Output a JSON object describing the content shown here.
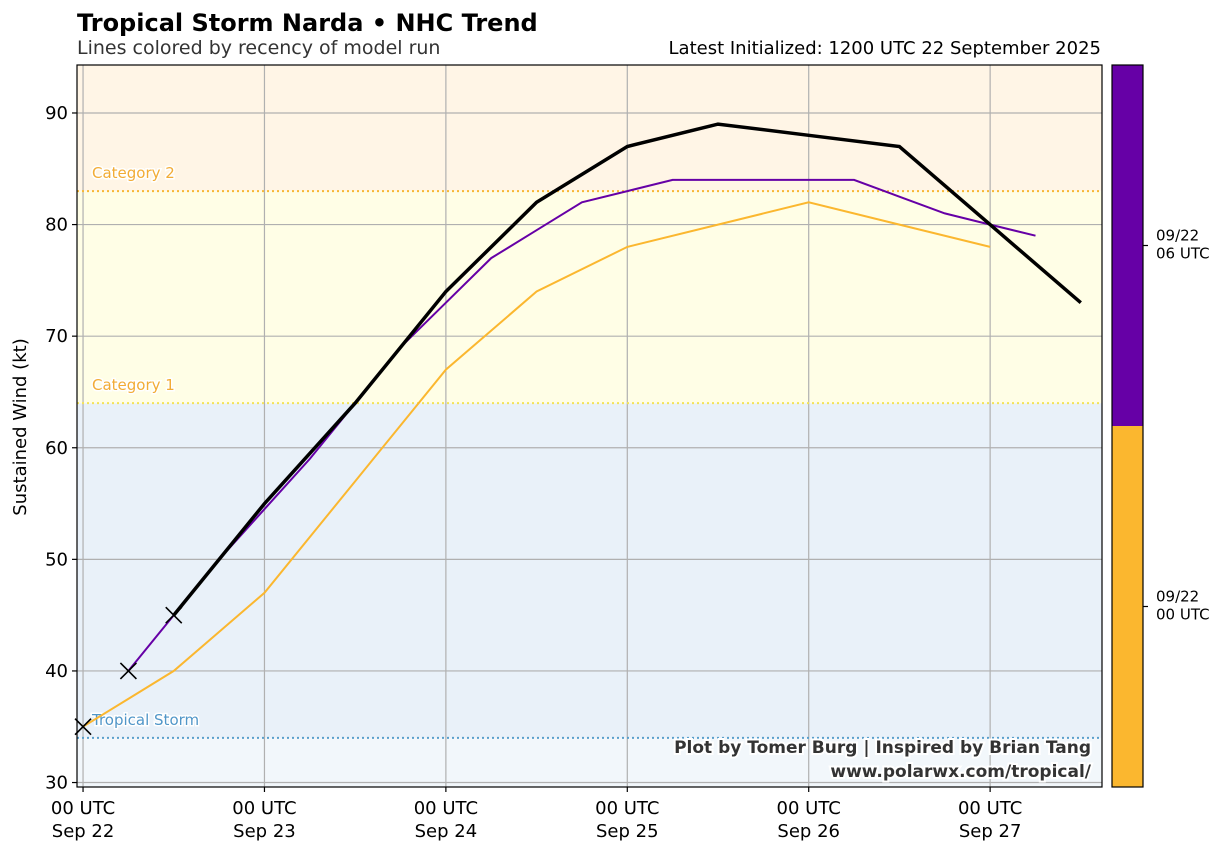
{
  "chart_data": {
    "type": "line",
    "title": "Tropical Storm Narda • NHC Trend",
    "subtitle": "Lines colored by recency of model run",
    "latest_label": "Latest Initialized: 1200 UTC 22 September 2025",
    "ylabel": "Sustained Wind (kt)",
    "ylim": [
      29.6,
      94.3
    ],
    "yticks": [
      "30",
      "40",
      "50",
      "60",
      "70",
      "80",
      "90"
    ],
    "xlim_hours": [
      -0.2,
      33.7
    ],
    "xtick_hours": [
      0,
      6,
      12,
      18,
      24,
      30
    ],
    "xtick_labels": [
      [
        "00 UTC",
        "Sep 22"
      ],
      [
        "00 UTC",
        "Sep 23"
      ],
      [
        "00 UTC",
        "Sep 24"
      ],
      [
        "00 UTC",
        "Sep 25"
      ],
      [
        "00 UTC",
        "Sep 26"
      ],
      [
        "00 UTC",
        "Sep 27"
      ]
    ],
    "grid": true,
    "thresholds": [
      {
        "label": "Tropical Storm",
        "value": 34,
        "color": "#5aa0cc"
      },
      {
        "label": "Category 1",
        "value": 64,
        "color": "#f3e25a"
      },
      {
        "label": "Category 2",
        "value": 83,
        "color": "#f7b733"
      }
    ],
    "threshold_label_colors": {
      "Tropical Storm": "#5096c8",
      "Category 1": "#f2ac36",
      "Category 2": "#f2ac36"
    },
    "bands": [
      {
        "from": 29.6,
        "to": 34,
        "color": "#f2f7fb"
      },
      {
        "from": 34,
        "to": 64,
        "color": "#e9f1f9"
      },
      {
        "from": 64,
        "to": 83,
        "color": "#fffee6"
      },
      {
        "from": 83,
        "to": 94.3,
        "color": "#fff5e6"
      }
    ],
    "series": [
      {
        "color": "#fbb72f",
        "width": 2,
        "x": [
          0,
          3,
          6,
          9,
          12,
          15,
          18,
          21,
          24,
          27,
          30
        ],
        "y": [
          35,
          40,
          47,
          57,
          67,
          74,
          78,
          80,
          82,
          80,
          78
        ]
      },
      {
        "color": "#6600a6",
        "width": 2,
        "x": [
          1.5,
          3,
          4.5,
          6,
          7.5,
          9,
          10.5,
          12,
          13.5,
          15,
          16.5,
          18,
          19.5,
          21,
          22.5,
          24,
          25.5,
          27,
          28.5,
          30,
          31.5
        ],
        "y": [
          40,
          45,
          50,
          54.5,
          59,
          64,
          69,
          73,
          77,
          79.5,
          82,
          83,
          84,
          84,
          84,
          84,
          84,
          82.5,
          81,
          80,
          79
        ]
      },
      {
        "color": "#000000",
        "width": 3.5,
        "x": [
          3,
          6,
          9,
          12,
          15,
          18,
          21,
          24,
          27,
          30,
          33
        ],
        "y": [
          45,
          55,
          64,
          74,
          82,
          87,
          89,
          88,
          87,
          80,
          73
        ]
      }
    ],
    "observed_markers": [
      {
        "x": 0,
        "y": 35
      },
      {
        "x": 1.5,
        "y": 40
      },
      {
        "x": 3,
        "y": 45
      }
    ],
    "colorbar": {
      "segments": [
        {
          "color": "#fbb72f",
          "label_line1": "09/22",
          "label_line2": "00 UTC"
        },
        {
          "color": "#6600a6",
          "label_line1": "09/22",
          "label_line2": "06 UTC"
        }
      ]
    },
    "credit_line1": "Plot by Tomer Burg | Inspired by Brian Tang",
    "credit_line2": "www.polarwx.com/tropical/"
  }
}
